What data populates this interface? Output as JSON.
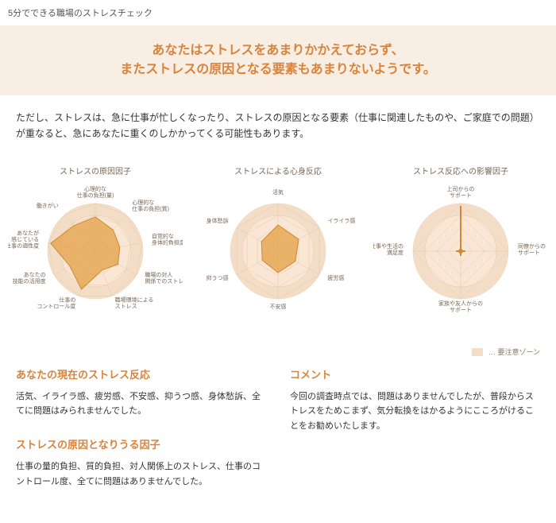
{
  "page_title": "5分でできる職場のストレスチェック",
  "summary": {
    "line1": "あなたはストレスをあまりかかえておらず、",
    "line2": "またストレスの原因となる要素もあまりないようです。"
  },
  "note": "ただし、ストレスは、急に仕事が忙しくなったり、ストレスの原因となる要素（仕事に関連したものや、ご家庭での問題）が重なると、急にあなたに重くのしかかってくる可能性もあります。",
  "legend_label": "… 要注意ゾーン",
  "chart_style": {
    "type": "radar",
    "bg_color": "#ffffff",
    "ring_fill": "#f9e6d5",
    "caution_fill": "#f3ddc7",
    "web_stroke": "#e6c8a6",
    "poly_fill": "#e6a855",
    "poly_stroke": "#cc8a33",
    "label_color": "#776655",
    "label_fontsize": 7,
    "title_color": "#776655",
    "title_fontsize": 10,
    "radius": 60,
    "levels": 4
  },
  "charts": [
    {
      "title": "ストレスの原因因子",
      "axes": [
        "心理的な\n仕事の負担(量)",
        "心理的な\n仕事の負担(質)",
        "自覚的な\n身体的負担度",
        "職場の対人\n関係でのストレス",
        "職場環境による\nストレス",
        "仕事の\nコントロール度",
        "あなたの\n技能の活用度",
        "あなたが\n感じている\n仕事の適性度",
        "働きがい"
      ],
      "values": [
        0.72,
        0.58,
        0.52,
        0.55,
        0.42,
        0.85,
        0.62,
        0.95,
        0.7
      ],
      "max": 1.0
    },
    {
      "title": "ストレスによる心身反応",
      "axes": [
        "活気",
        "イライラ感",
        "疲労感",
        "不安感",
        "抑うつ感",
        "身体愁訴"
      ],
      "values": [
        0.55,
        0.5,
        0.42,
        0.45,
        0.38,
        0.4
      ],
      "max": 1.0
    },
    {
      "title": "ストレス反応への影響因子",
      "axes": [
        "上司からの\nサポート",
        "同僚からの\nサポート",
        "家族や友人からの\nサポート",
        "仕事や生活の\n満足度"
      ],
      "values": [
        0.95,
        0.1,
        0.1,
        0.1
      ],
      "max": 1.0
    }
  ],
  "sections": {
    "reaction": {
      "title": "あなたの現在のストレス反応",
      "body": "活気、イライラ感、疲労感、不安感、抑うつ感、身体愁訴、全てに問題はみられませんでした。"
    },
    "causes": {
      "title": "ストレスの原因となりうる因子",
      "body": "仕事の量的負担、質的負担、対人関係上のストレス、仕事のコントロール度、全てに問題はありませんでした。"
    },
    "comment": {
      "title": "コメント",
      "body": "今回の調査時点では、問題はありませんでしたが、普段からストレスをためこまず、気分転換をはかるようにこころがけることをお勧めいたします。"
    }
  }
}
